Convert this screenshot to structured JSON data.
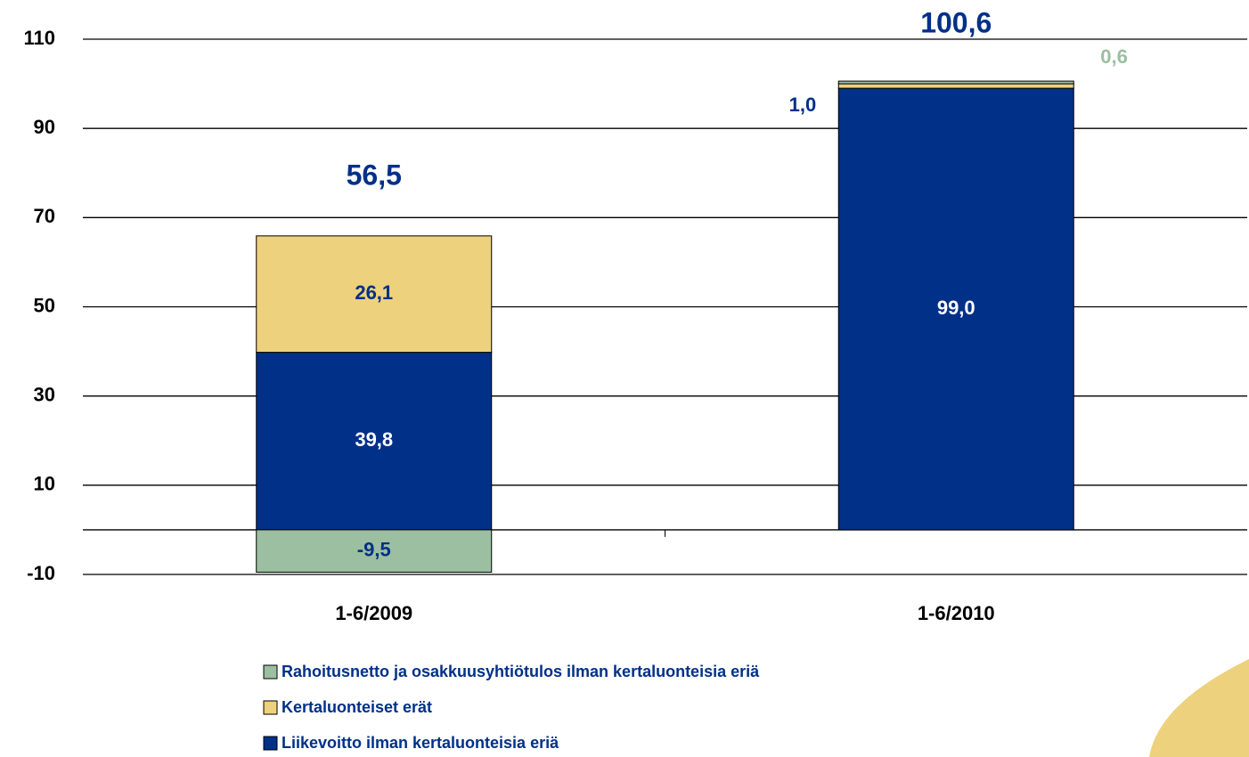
{
  "chart_data": {
    "type": "stacked-bar",
    "categories": [
      "1-6/2009",
      "1-6/2010"
    ],
    "series": [
      {
        "name": "Rahoitusnetto ja osakkuusyhtiötulos ilman kertaluonteisia eriä",
        "color": "#9bbfa0",
        "values": [
          -9.5,
          0.6
        ],
        "value_labels": [
          "-9,5",
          "0,6"
        ]
      },
      {
        "name": "Kertaluonteiset erät",
        "color": "#edd17c",
        "values": [
          26.1,
          1.0
        ],
        "value_labels": [
          "26,1",
          "1,0"
        ]
      },
      {
        "name": "Liikevoitto ilman kertaluonteisia eriä",
        "color": "#003087",
        "values": [
          39.8,
          99.0
        ],
        "value_labels": [
          "39,8",
          "99,0"
        ]
      }
    ],
    "totals": {
      "values": [
        56.5,
        100.6
      ],
      "value_labels": [
        "56,5",
        "100,6"
      ]
    },
    "ylim": [
      -10,
      110
    ],
    "yticks": [
      -10,
      10,
      30,
      50,
      70,
      90,
      110
    ],
    "grid": true
  }
}
